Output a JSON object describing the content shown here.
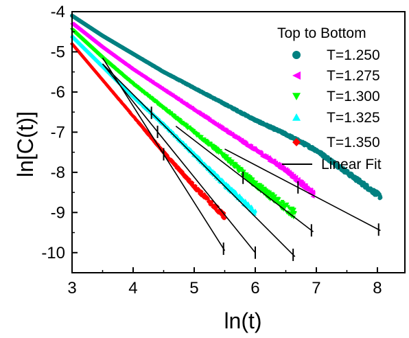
{
  "chart_data": {
    "type": "scatter",
    "xlabel": "ln(t)",
    "ylabel": "ln[C(t)]",
    "xlim": [
      3,
      8.45
    ],
    "ylim": [
      -10.5,
      -4
    ],
    "x_ticks": [
      3,
      4,
      5,
      6,
      7,
      8
    ],
    "y_ticks": [
      -4,
      -5,
      -6,
      -7,
      -8,
      -9,
      -10
    ],
    "grid": false,
    "legend_title": "Top to Bottom",
    "legend_position": "top-right",
    "series": [
      {
        "name": "T=1.250",
        "marker": "circle",
        "color": "#008080",
        "x_range": [
          3.0,
          8.05
        ],
        "curve": [
          [
            3.0,
            -4.1
          ],
          [
            3.5,
            -4.6
          ],
          [
            4.0,
            -5.05
          ],
          [
            4.5,
            -5.5
          ],
          [
            5.0,
            -5.9
          ],
          [
            5.5,
            -6.3
          ],
          [
            6.0,
            -6.7
          ],
          [
            6.5,
            -7.05
          ],
          [
            7.0,
            -7.45
          ],
          [
            7.5,
            -8.0
          ],
          [
            8.0,
            -8.55
          ],
          [
            8.05,
            -8.6
          ]
        ],
        "noise": 0.06
      },
      {
        "name": "T=1.275",
        "marker": "triangle-left",
        "color": "#ff00ff",
        "x_range": [
          3.0,
          6.95
        ],
        "curve": [
          [
            3.0,
            -4.3
          ],
          [
            3.5,
            -4.9
          ],
          [
            4.0,
            -5.45
          ],
          [
            4.5,
            -5.95
          ],
          [
            5.0,
            -6.45
          ],
          [
            5.5,
            -6.95
          ],
          [
            6.0,
            -7.45
          ],
          [
            6.5,
            -7.95
          ],
          [
            6.95,
            -8.55
          ]
        ],
        "noise": 0.07
      },
      {
        "name": "T=1.300",
        "marker": "triangle-down",
        "color": "#00ff00",
        "x_range": [
          3.0,
          6.65
        ],
        "curve": [
          [
            3.0,
            -4.45
          ],
          [
            3.5,
            -5.15
          ],
          [
            4.0,
            -5.8
          ],
          [
            4.5,
            -6.4
          ],
          [
            5.0,
            -7.0
          ],
          [
            5.5,
            -7.6
          ],
          [
            6.0,
            -8.3
          ],
          [
            6.65,
            -9.05
          ]
        ],
        "noise": 0.12
      },
      {
        "name": "T=1.325",
        "marker": "triangle-up",
        "color": "#00ffff",
        "x_range": [
          3.0,
          6.0
        ],
        "curve": [
          [
            3.0,
            -4.6
          ],
          [
            3.5,
            -5.35
          ],
          [
            4.0,
            -6.1
          ],
          [
            4.5,
            -6.8
          ],
          [
            5.0,
            -7.55
          ],
          [
            5.5,
            -8.3
          ],
          [
            6.0,
            -9.0
          ]
        ],
        "noise": 0.08
      },
      {
        "name": "T=1.350",
        "marker": "diamond",
        "color": "#ff0000",
        "x_range": [
          3.0,
          5.5
        ],
        "curve": [
          [
            3.0,
            -4.8
          ],
          [
            3.5,
            -5.7
          ],
          [
            4.0,
            -6.6
          ],
          [
            4.5,
            -7.5
          ],
          [
            5.0,
            -8.35
          ],
          [
            5.5,
            -9.1
          ]
        ],
        "noise": 0.08
      }
    ],
    "fits": [
      {
        "name": "Linear Fit",
        "series": "T=1.250",
        "x": [
          5.5,
          8.05
        ],
        "y": [
          -7.42,
          -9.45
        ],
        "marks": [
          6.7,
          8.02
        ]
      },
      {
        "name": "Linear Fit",
        "series": "T=1.275",
        "x": [
          4.7,
          6.95
        ],
        "y": [
          -6.85,
          -9.48
        ],
        "marks": [
          5.8,
          6.92
        ]
      },
      {
        "name": "Linear Fit",
        "series": "T=1.300",
        "x": [
          3.5,
          6.65
        ],
        "y": [
          -5.3,
          -10.1
        ],
        "marks": [
          4.3,
          6.62
        ]
      },
      {
        "name": "Linear Fit",
        "series": "T=1.325",
        "x": [
          3.5,
          6.0
        ],
        "y": [
          -5.3,
          -10.0
        ],
        "marks": [
          4.4,
          6.0
        ]
      },
      {
        "name": "Linear Fit",
        "series": "T=1.350",
        "x": [
          3.5,
          5.5
        ],
        "y": [
          -5.15,
          -9.95
        ],
        "marks": [
          4.5,
          5.48
        ]
      }
    ]
  }
}
